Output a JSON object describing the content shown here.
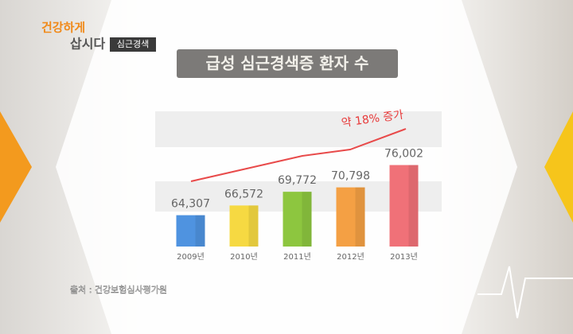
{
  "logo": {
    "line1": "건강하게",
    "line2": "삽시다",
    "badge": "심근경색"
  },
  "source": "출처 : 건강보험심사평가원",
  "chart_data": {
    "type": "bar",
    "title": "급성 심근경색증 환자 수",
    "annotation": "약 18% 증가",
    "categories": [
      "2009년",
      "2010년",
      "2011년",
      "2012년",
      "2013년"
    ],
    "values": [
      64307,
      66572,
      69772,
      70798,
      76002
    ],
    "value_labels": [
      "64,307",
      "66,572",
      "69,772",
      "70,798",
      "76,002"
    ],
    "colors": [
      "#4f93e0",
      "#f6d942",
      "#8dc63f",
      "#f4a044",
      "#f07178"
    ],
    "ylim": [
      57000,
      80000
    ]
  }
}
